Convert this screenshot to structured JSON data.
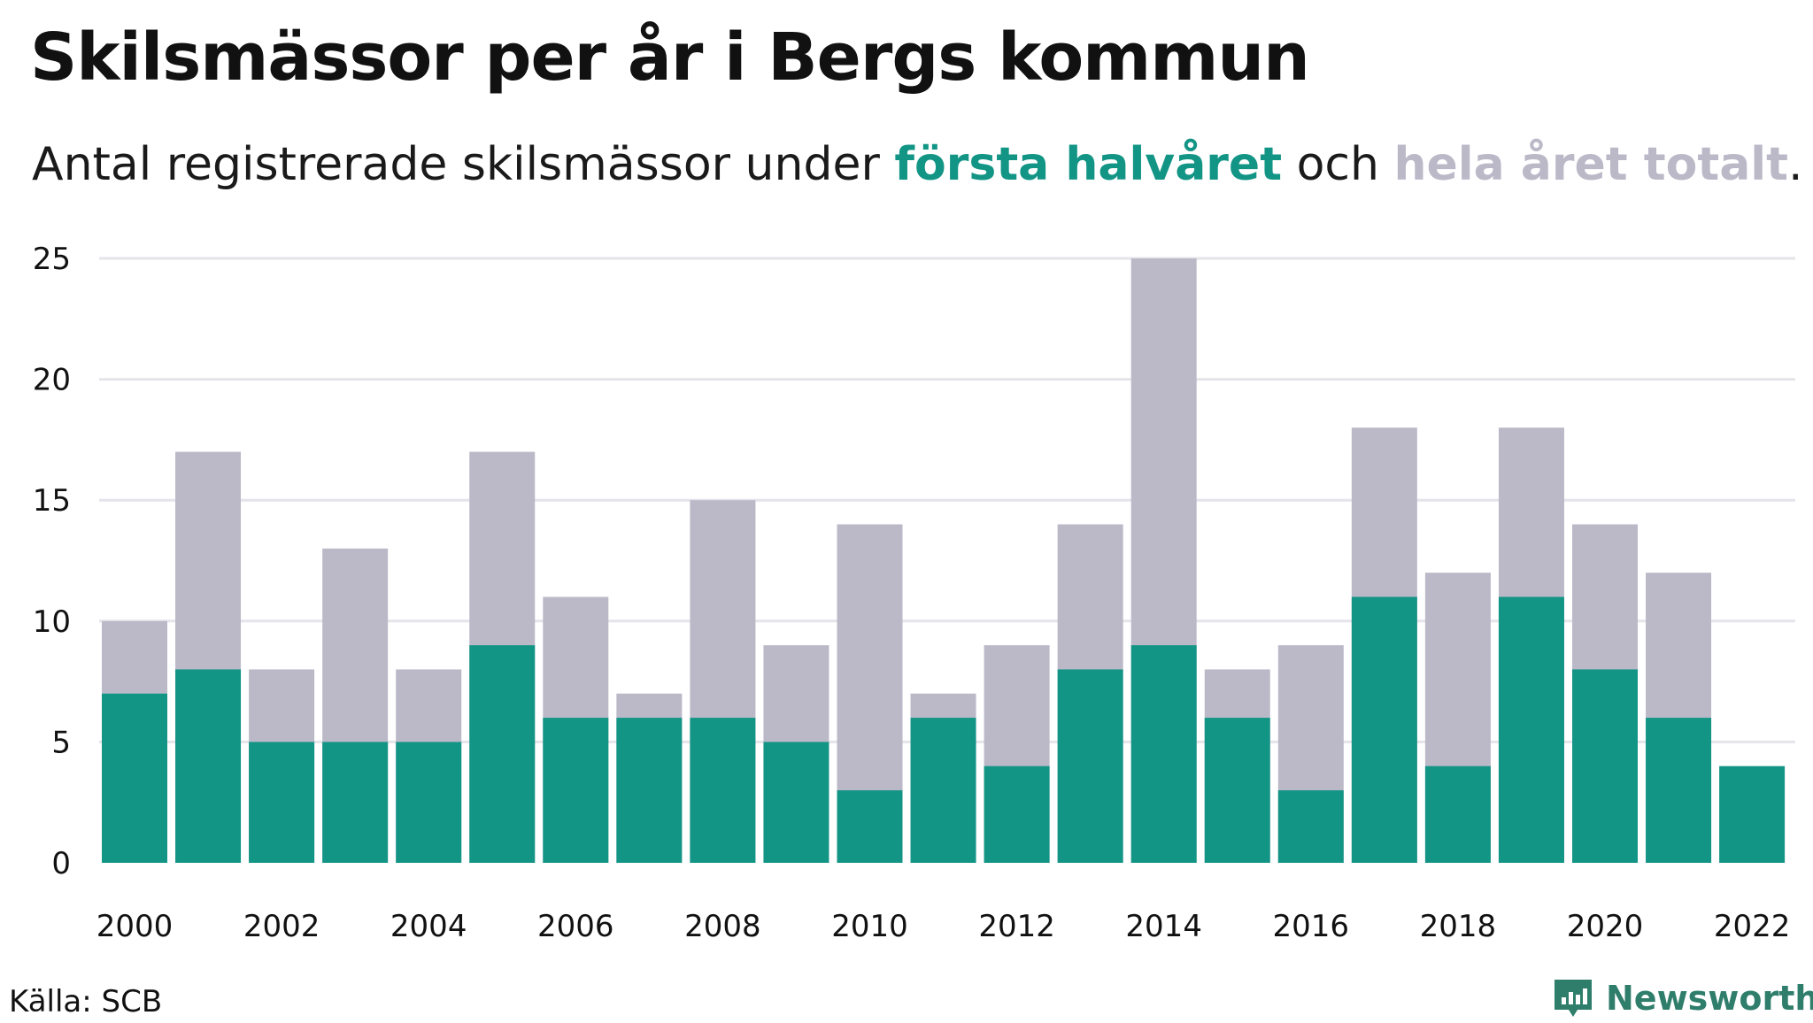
{
  "header": {
    "title": "Skilsmässor per år i Bergs kommun",
    "subtitle_prefix": "Antal registrerade skilsmässor under ",
    "subtitle_first": "första halvåret",
    "subtitle_middle": " och ",
    "subtitle_total": "hela året totalt",
    "subtitle_suffix": "."
  },
  "colors": {
    "first_half": "#139586",
    "full_year": "#bbb9c8",
    "gridline": "#e4e4ea",
    "text": "#111111",
    "brand": "#2f7d6b"
  },
  "footer": {
    "source": "Källa: SCB",
    "brand_name": "Newsworthy",
    "brand_icon": "newsworthy-logo-icon"
  },
  "chart_data": {
    "type": "bar",
    "stacking": "overlay",
    "categories": [
      "2000",
      "2001",
      "2002",
      "2003",
      "2004",
      "2005",
      "2006",
      "2007",
      "2008",
      "2009",
      "2010",
      "2011",
      "2012",
      "2013",
      "2014",
      "2015",
      "2016",
      "2017",
      "2018",
      "2019",
      "2020",
      "2021",
      "2022"
    ],
    "x_tick_labels": [
      "2000",
      "2002",
      "2004",
      "2006",
      "2008",
      "2010",
      "2012",
      "2014",
      "2016",
      "2018",
      "2020",
      "2022"
    ],
    "y_ticks": [
      0,
      5,
      10,
      15,
      20,
      25
    ],
    "ylim": [
      0,
      25
    ],
    "grid": true,
    "legend": "none",
    "series": [
      {
        "name": "hela året totalt",
        "values": [
          10,
          17,
          8,
          13,
          8,
          17,
          11,
          7,
          15,
          9,
          14,
          7,
          9,
          14,
          25,
          8,
          9,
          18,
          12,
          18,
          14,
          12,
          null
        ]
      },
      {
        "name": "första halvåret",
        "values": [
          7,
          8,
          5,
          5,
          5,
          9,
          6,
          6,
          6,
          5,
          3,
          6,
          4,
          8,
          9,
          6,
          3,
          11,
          4,
          11,
          8,
          6,
          4
        ]
      }
    ]
  }
}
